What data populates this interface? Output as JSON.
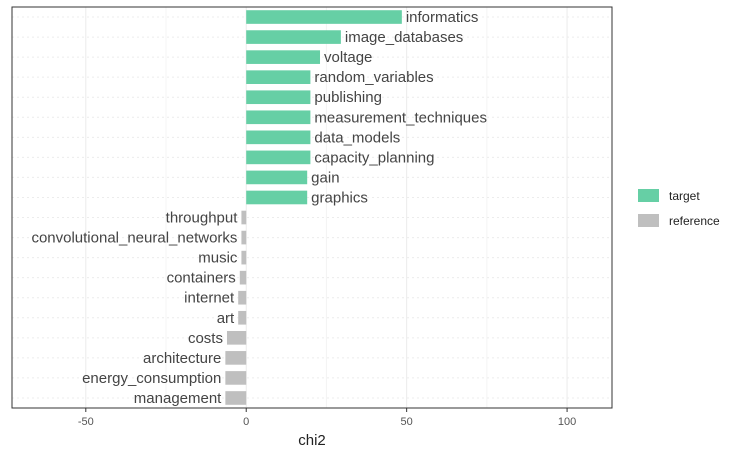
{
  "chart_data": {
    "type": "bar",
    "orientation": "horizontal",
    "categories": [
      "informatics",
      "image_databases",
      "voltage",
      "random_variables",
      "publishing",
      "measurement_techniques",
      "data_models",
      "capacity_planning",
      "gain",
      "graphics",
      "throughput",
      "convolutional_neural_networks",
      "music",
      "containers",
      "internet",
      "art",
      "costs",
      "architecture",
      "energy_consumption",
      "management"
    ],
    "values": [
      48.5,
      29.5,
      23,
      20,
      20,
      20,
      20,
      20,
      19,
      19,
      -1.5,
      -1.5,
      -1.5,
      -2,
      -2.5,
      -2.5,
      -6,
      -6.5,
      -6.5,
      -6.5
    ],
    "groups": [
      "target",
      "target",
      "target",
      "target",
      "target",
      "target",
      "target",
      "target",
      "target",
      "target",
      "reference",
      "reference",
      "reference",
      "reference",
      "reference",
      "reference",
      "reference",
      "reference",
      "reference",
      "reference"
    ],
    "xlabel": "chi2",
    "ylabel": "",
    "xlim": [
      -73,
      114
    ],
    "xticks": [
      -50,
      0,
      50,
      100
    ],
    "grid": true,
    "legend": {
      "position": "right",
      "entries": [
        {
          "label": "target",
          "color": "#66cfa5"
        },
        {
          "label": "reference",
          "color": "#bfbfbf"
        }
      ]
    }
  }
}
